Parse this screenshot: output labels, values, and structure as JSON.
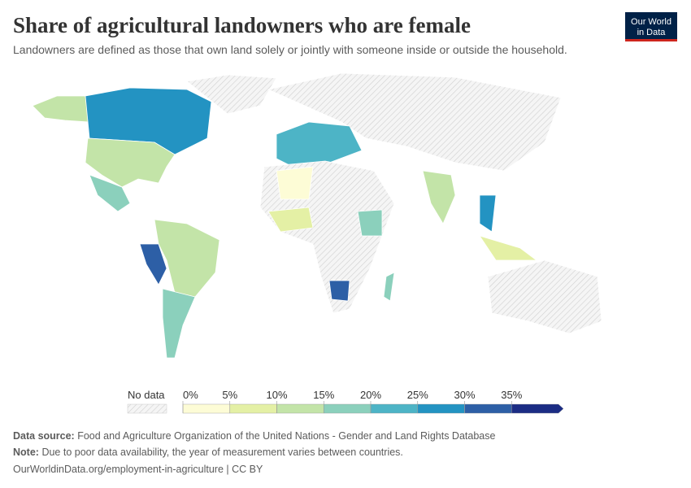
{
  "header": {
    "title": "Share of agricultural landowners who are female",
    "subtitle": "Landowners are defined as those that own land solely or jointly with someone inside or outside the household.",
    "logo": [
      "Our World",
      "in Data"
    ]
  },
  "legend": {
    "no_data_label": "No data",
    "range": [
      0,
      40
    ],
    "ticks": [
      {
        "value": 0,
        "label": "0%"
      },
      {
        "value": 5,
        "label": "5%"
      },
      {
        "value": 10,
        "label": "10%"
      },
      {
        "value": 15,
        "label": "15%"
      },
      {
        "value": 20,
        "label": "20%"
      },
      {
        "value": 25,
        "label": "25%"
      },
      {
        "value": 30,
        "label": "30%"
      },
      {
        "value": 35,
        "label": "35%"
      }
    ],
    "colors": [
      "#fdfcd6",
      "#e4f0a5",
      "#c3e4a8",
      "#8bd0bc",
      "#4db4c6",
      "#2393c2",
      "#2d5fa6",
      "#1b2c84"
    ]
  },
  "footer": {
    "source_label": "Data source:",
    "source": "Food and Agriculture Organization of the United Nations - Gender and Land Rights Database",
    "note_label": "Note:",
    "note": "Due to poor data availability, the year of measurement varies between countries.",
    "url": "OurWorldinData.org/employment-in-agriculture | CC BY"
  }
}
